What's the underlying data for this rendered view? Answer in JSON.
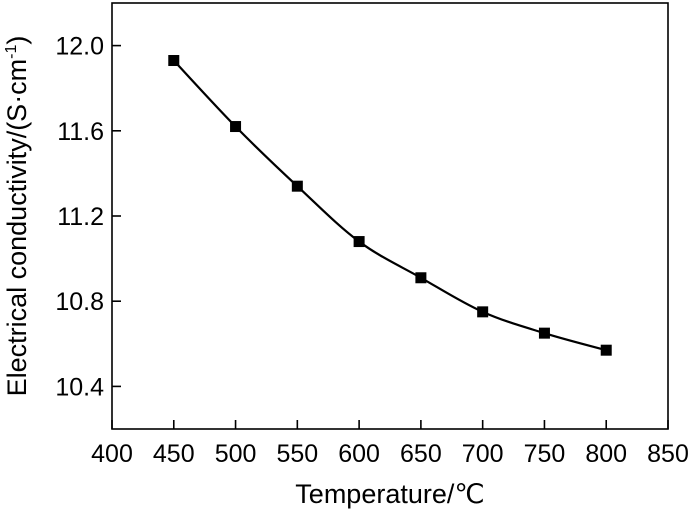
{
  "chart_data": {
    "type": "line",
    "title": "",
    "xlabel": "Temperature/℃",
    "ylabel": "Electrical conductivity/(S·cm",
    "ylabel_superscript": "-1",
    "ylabel_suffix": ")",
    "xlim": [
      400,
      850
    ],
    "ylim": [
      10.2,
      12.2
    ],
    "xticks": [
      400,
      450,
      500,
      550,
      600,
      650,
      700,
      750,
      800,
      850
    ],
    "xtick_labels": [
      "400",
      "450",
      "500",
      "550",
      "600",
      "650",
      "700",
      "750",
      "800",
      "850"
    ],
    "yticks": [
      10.4,
      10.8,
      11.2,
      11.6,
      12.0
    ],
    "ytick_labels": [
      "10.4",
      "10.8",
      "11.2",
      "11.6",
      "12.0"
    ],
    "grid": false,
    "marker": "square",
    "line_color": "#000000",
    "series": [
      {
        "x": [
          450,
          500,
          550,
          600,
          650,
          700,
          750,
          800
        ],
        "y": [
          11.93,
          11.62,
          11.34,
          11.08,
          10.91,
          10.75,
          10.65,
          10.57
        ]
      }
    ]
  }
}
